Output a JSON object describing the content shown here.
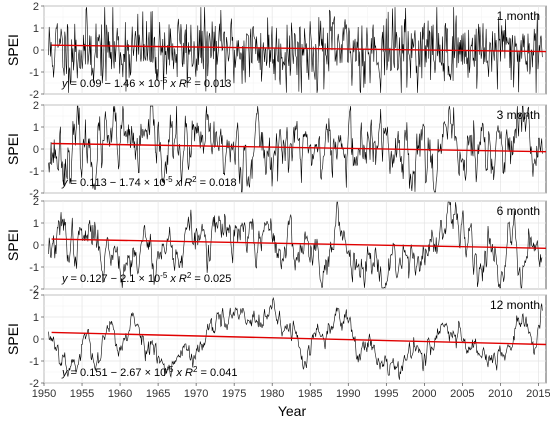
{
  "chart_data": [
    {
      "type": "line",
      "panel_label": "1 month",
      "ylabel": "SPEI",
      "yticks": [
        -2,
        -1,
        0,
        1,
        2
      ],
      "ylim": [
        -2,
        2
      ],
      "xlim": [
        1950,
        2016
      ],
      "trend_line": {
        "y_start": 0.22,
        "y_end": -0.07
      },
      "equation": {
        "intercept": "0.09",
        "slope": "1.46",
        "exponent": "-5",
        "r2": "0.013"
      },
      "seed": 11,
      "ar": 0.15,
      "amp": 1.0,
      "colors": {
        "series": "#000000",
        "trend": "#e00000"
      }
    },
    {
      "type": "line",
      "panel_label": "3 month",
      "ylabel": "SPEI",
      "yticks": [
        -2,
        -1,
        0,
        1,
        2
      ],
      "ylim": [
        -2,
        2
      ],
      "xlim": [
        1950,
        2016
      ],
      "trend_line": {
        "y_start": 0.25,
        "y_end": -0.12
      },
      "equation": {
        "intercept": "0.113",
        "slope": "1.74",
        "exponent": "-5",
        "r2": "0.018"
      },
      "seed": 23,
      "ar": 0.75,
      "amp": 1.0,
      "colors": {
        "series": "#000000",
        "trend": "#e00000"
      }
    },
    {
      "type": "line",
      "panel_label": "6 month",
      "ylabel": "SPEI",
      "yticks": [
        -2,
        -1,
        0,
        1,
        2
      ],
      "ylim": [
        -2,
        2
      ],
      "xlim": [
        1950,
        2016
      ],
      "trend_line": {
        "y_start": 0.27,
        "y_end": -0.15
      },
      "equation": {
        "intercept": "0.127",
        "slope": "2.1",
        "exponent": "-5",
        "r2": "0.025"
      },
      "seed": 37,
      "ar": 0.9,
      "amp": 1.0,
      "colors": {
        "series": "#000000",
        "trend": "#e00000"
      }
    },
    {
      "type": "line",
      "panel_label": "12 month",
      "ylabel": "SPEI",
      "yticks": [
        -2,
        -1,
        0,
        1,
        2
      ],
      "ylim": [
        -2,
        2
      ],
      "xlim": [
        1950,
        2016
      ],
      "trend_line": {
        "y_start": 0.3,
        "y_end": -0.25
      },
      "equation": {
        "intercept": "0.151",
        "slope": "2.67",
        "exponent": "-5",
        "r2": "0.041"
      },
      "seed": 53,
      "ar": 0.96,
      "amp": 1.0,
      "colors": {
        "series": "#000000",
        "trend": "#e00000"
      }
    }
  ],
  "xaxis": {
    "label": "Year",
    "ticks": [
      1950,
      1955,
      1960,
      1965,
      1970,
      1975,
      1980,
      1985,
      1990,
      1995,
      2000,
      2005,
      2010,
      2015
    ]
  }
}
